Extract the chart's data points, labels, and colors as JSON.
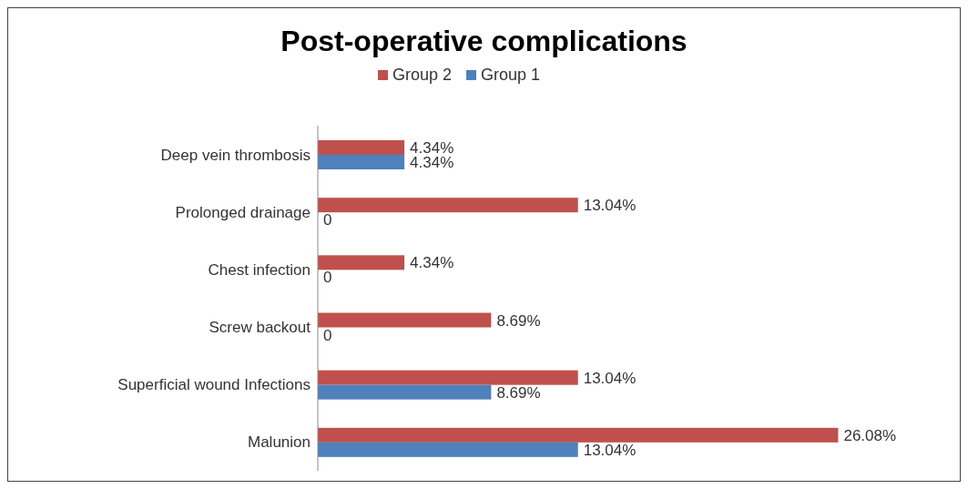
{
  "chart_data": {
    "type": "bar",
    "orientation": "horizontal",
    "title": "Post-operative complications",
    "categories": [
      "Deep vein thrombosis",
      "Prolonged drainage",
      "Chest infection",
      "Screw backout",
      "Superficial wound Infections",
      "Malunion"
    ],
    "series": [
      {
        "name": "Group 2",
        "color": "#c0504d",
        "values": [
          4.34,
          13.04,
          4.34,
          8.69,
          13.04,
          26.08
        ],
        "value_labels": [
          "4.34%",
          "13.04%",
          "4.34%",
          "8.69%",
          "13.04%",
          "26.08%"
        ]
      },
      {
        "name": "Group 1",
        "color": "#4f81bd",
        "values": [
          4.34,
          0,
          0,
          0,
          8.69,
          13.04
        ],
        "value_labels": [
          "4.34%",
          "0",
          "0",
          "0",
          "8.69%",
          "13.04%"
        ]
      }
    ],
    "legend": "top",
    "grid": false
  }
}
